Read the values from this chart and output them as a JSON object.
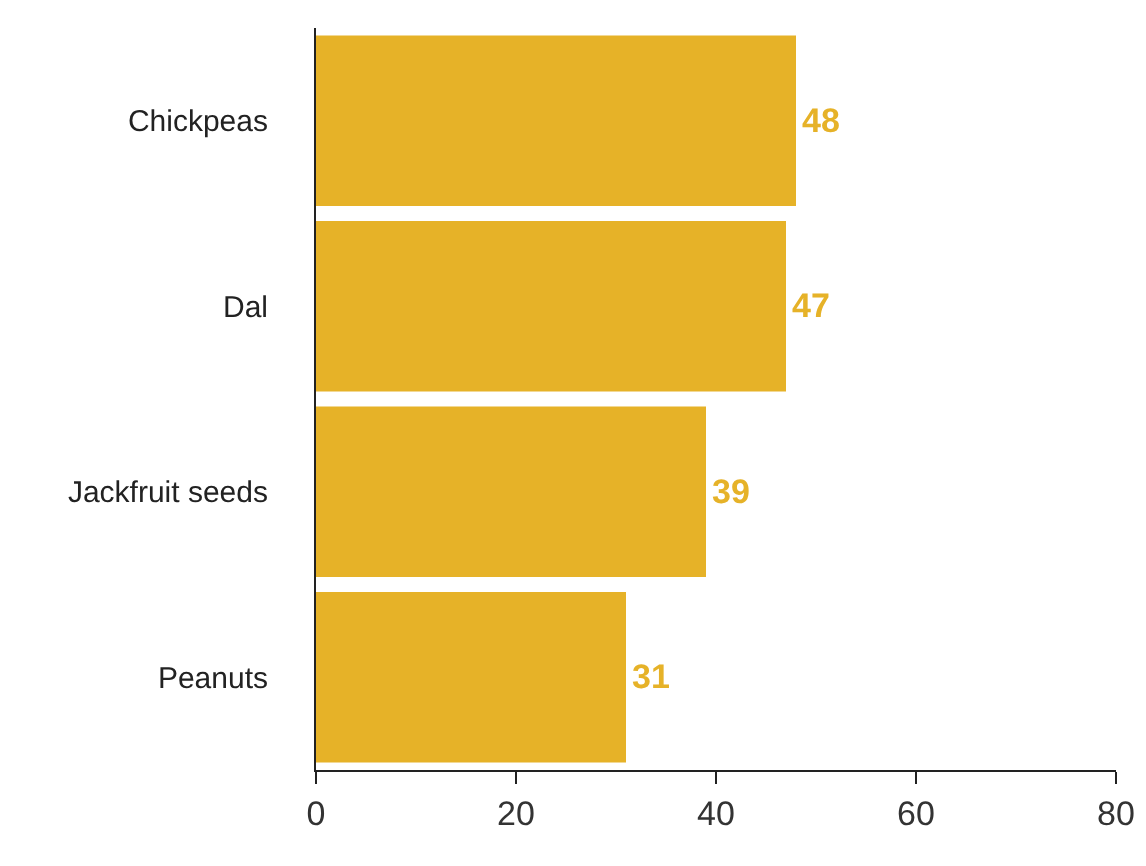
{
  "chart_data": {
    "type": "bar",
    "orientation": "horizontal",
    "categories": [
      "Chickpeas",
      "Dal",
      "Jackfruit seeds",
      "Peanuts"
    ],
    "values": [
      48,
      47,
      39,
      31
    ],
    "color": "#e6b228",
    "xlim": [
      0,
      80
    ],
    "xticks": [
      0,
      20,
      40,
      60,
      80
    ],
    "grid": false,
    "data_labels": true,
    "legend": false
  }
}
